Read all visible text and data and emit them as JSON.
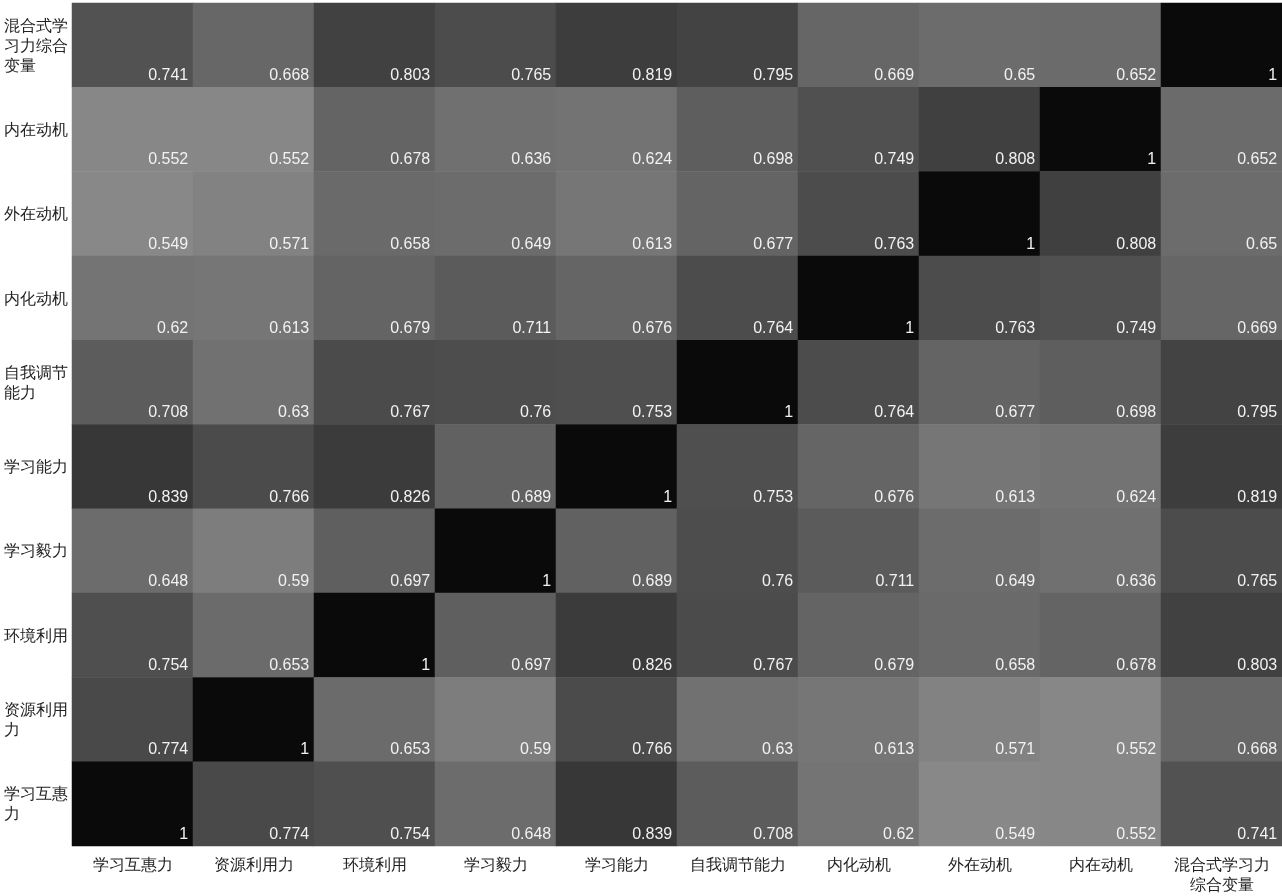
{
  "chart_data": {
    "type": "heatmap",
    "categories": [
      "学习互惠力",
      "资源利用力",
      "环境利用",
      "学习毅力",
      "学习能力",
      "自我调节能力",
      "内化动机",
      "外在动机",
      "内在动机",
      "混合式学习力综合变量"
    ],
    "y_categories": [
      "混合式学习力综合变量",
      "内在动机",
      "外在动机",
      "内化动机",
      "自我调节能力",
      "学习能力",
      "学习毅力",
      "环境利用",
      "资源利用力",
      "学习互惠力"
    ],
    "cells": [
      [
        0.741,
        0.668,
        0.803,
        0.765,
        0.819,
        0.795,
        0.669,
        0.65,
        0.652,
        1
      ],
      [
        0.552,
        0.552,
        0.678,
        0.636,
        0.624,
        0.698,
        0.749,
        0.808,
        1,
        0.652
      ],
      [
        0.549,
        0.571,
        0.658,
        0.649,
        0.613,
        0.677,
        0.763,
        1,
        0.808,
        0.65
      ],
      [
        0.62,
        0.613,
        0.679,
        0.711,
        0.676,
        0.764,
        1,
        0.763,
        0.749,
        0.669
      ],
      [
        0.708,
        0.63,
        0.767,
        0.76,
        0.753,
        1,
        0.764,
        0.677,
        0.698,
        0.795
      ],
      [
        0.839,
        0.766,
        0.826,
        0.689,
        1,
        0.753,
        0.676,
        0.613,
        0.624,
        0.819
      ],
      [
        0.648,
        0.59,
        0.697,
        1,
        0.689,
        0.76,
        0.711,
        0.649,
        0.636,
        0.765
      ],
      [
        0.754,
        0.653,
        1,
        0.697,
        0.826,
        0.767,
        0.679,
        0.658,
        0.678,
        0.803
      ],
      [
        0.774,
        1,
        0.653,
        0.59,
        0.766,
        0.63,
        0.613,
        0.571,
        0.552,
        0.668
      ],
      [
        1,
        0.774,
        0.754,
        0.648,
        0.839,
        0.708,
        0.62,
        0.549,
        0.552,
        0.741
      ]
    ],
    "data_labels": true
  }
}
